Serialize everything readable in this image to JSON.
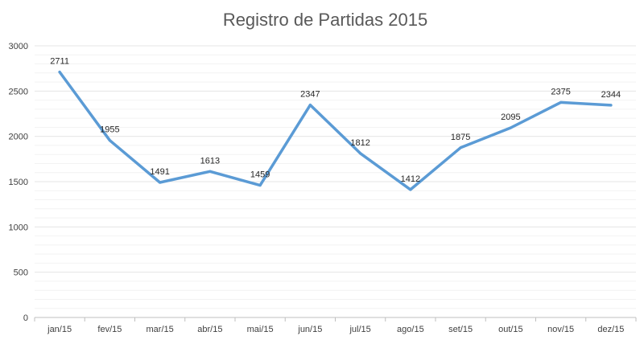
{
  "chart_data": {
    "type": "line",
    "title": "Registro de Partidas 2015",
    "xlabel": "",
    "ylabel": "",
    "categories": [
      "jan/15",
      "fev/15",
      "mar/15",
      "abr/15",
      "mai/15",
      "jun/15",
      "jul/15",
      "ago/15",
      "set/15",
      "out/15",
      "nov/15",
      "dez/15"
    ],
    "series": [
      {
        "values": [
          2711,
          1955,
          1491,
          1613,
          1459,
          2347,
          1812,
          1412,
          1875,
          2095,
          2375,
          2344
        ]
      }
    ],
    "ylim": [
      0,
      3000
    ],
    "yticks": [
      0,
      500,
      1000,
      1500,
      2000,
      2500,
      3000
    ],
    "grid": true,
    "data_labels": true,
    "line_color": "#5b9bd5"
  }
}
